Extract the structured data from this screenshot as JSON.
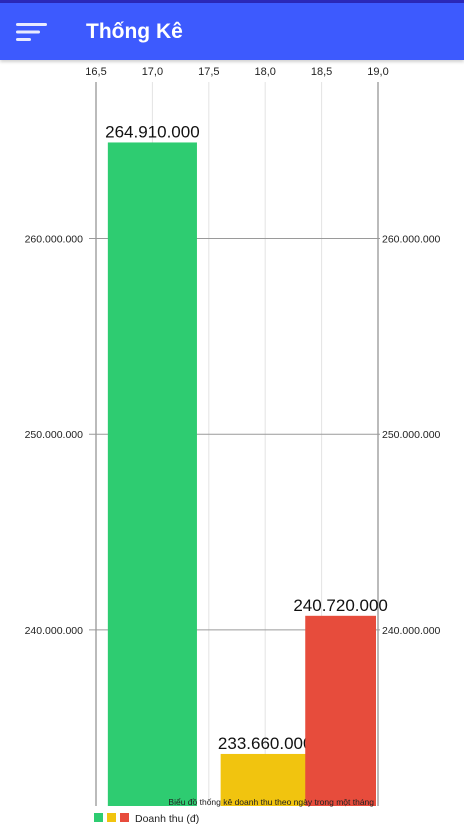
{
  "app_bar": {
    "title": "Thống Kê",
    "menu_icon": "menu-sort-icon",
    "background_color": "#3d5afe"
  },
  "chart_data": {
    "type": "bar",
    "orientation": "vertical",
    "categories": [
      "17",
      "18",
      "19"
    ],
    "x": [
      17.0,
      18.0,
      18.75
    ],
    "values": [
      264910000,
      233660000,
      240720000
    ],
    "value_labels": [
      "264.910.000",
      "233.660.000",
      "240.720.000"
    ],
    "colors": [
      "#2ecc71",
      "#f1c40f",
      "#e74c3c"
    ],
    "x_axis": {
      "position": "top",
      "range": [
        16.5,
        19.0
      ],
      "ticks": [
        16.5,
        17.0,
        17.5,
        18.0,
        18.5,
        19.0
      ],
      "tick_labels": [
        "16,5",
        "17,0",
        "17,5",
        "18,0",
        "18,5",
        "19,0"
      ]
    },
    "y_axis": {
      "sides": [
        "left",
        "right"
      ],
      "range": [
        231000000,
        268000000
      ],
      "ticks": [
        240000000,
        250000000,
        260000000
      ],
      "tick_labels": [
        "240.000.000",
        "250.000.000",
        "260.000.000"
      ]
    },
    "grid": true,
    "description": "Biểu đồ thống kê doanh thu theo ngày trong một tháng",
    "legend": {
      "position": "bottom-left",
      "label": "Doanh thu (đ)",
      "colors": [
        "#2ecc71",
        "#f1c40f",
        "#e74c3c"
      ]
    }
  }
}
